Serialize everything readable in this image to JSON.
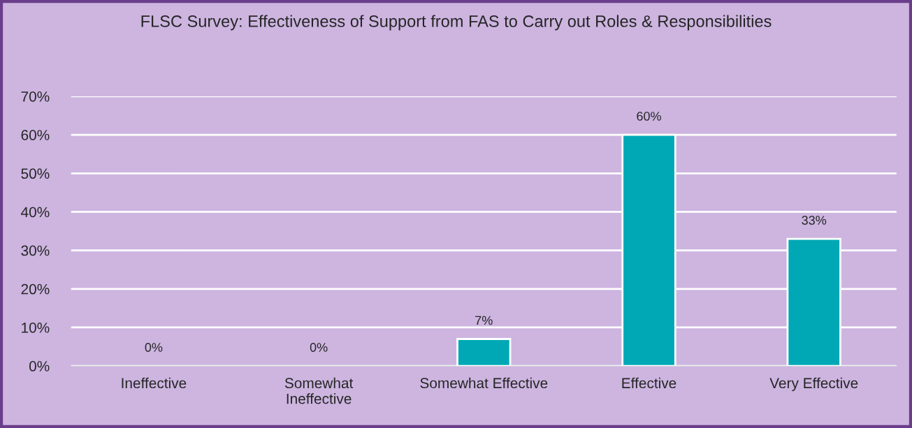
{
  "chart_data": {
    "type": "bar",
    "title": "FLSC Survey: Effectiveness of Support from FAS to Carry out Roles & Responsibilities",
    "categories": [
      "Ineffective",
      "Somewhat\nIneffective",
      "Somewhat Effective",
      "Effective",
      "Very Effective"
    ],
    "values": [
      0,
      0,
      7,
      60,
      33
    ],
    "color": "#00a8b5",
    "value_labels": [
      "0%",
      "0%",
      "7%",
      "60%",
      "33%"
    ],
    "ylim": [
      0,
      70
    ],
    "yticks": [
      {
        "value": 0,
        "label": "0%"
      },
      {
        "value": 10,
        "label": "10%"
      },
      {
        "value": 20,
        "label": "20%"
      },
      {
        "value": 30,
        "label": "30%"
      },
      {
        "value": 40,
        "label": "40%"
      },
      {
        "value": 50,
        "label": "50%"
      },
      {
        "value": 60,
        "label": "60%"
      },
      {
        "value": 70,
        "label": "70%"
      }
    ],
    "grid": "y",
    "legend": false
  }
}
